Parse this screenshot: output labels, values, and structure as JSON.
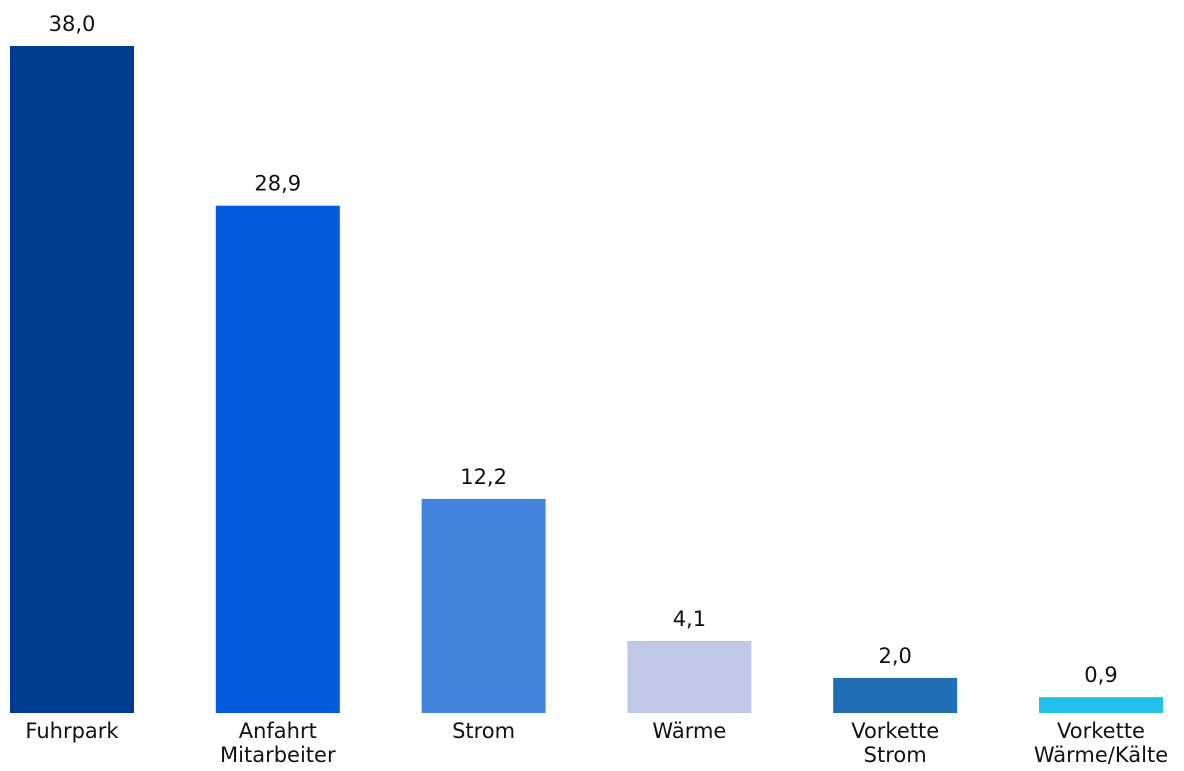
{
  "chart_data": {
    "type": "bar",
    "title": "",
    "xlabel": "",
    "ylabel": "",
    "ylim": [
      0,
      38
    ],
    "grid": false,
    "categories": [
      [
        "Fuhrpark"
      ],
      [
        "Anfahrt",
        "Mitarbeiter"
      ],
      [
        "Strom"
      ],
      [
        "Wärme"
      ],
      [
        "Vorkette",
        "Strom"
      ],
      [
        "Vorkette",
        "Wärme/Kälte"
      ]
    ],
    "values": [
      38.0,
      28.9,
      12.2,
      4.1,
      2.0,
      0.9
    ],
    "value_labels": [
      "38,0",
      "28,9",
      "12,2",
      "4,1",
      "2,0",
      "0,9"
    ],
    "colors": [
      "#003C8F",
      "#025CDC",
      "#4384DF",
      "#BFC8E6",
      "#1F6EB6",
      "#21C0E8"
    ]
  }
}
